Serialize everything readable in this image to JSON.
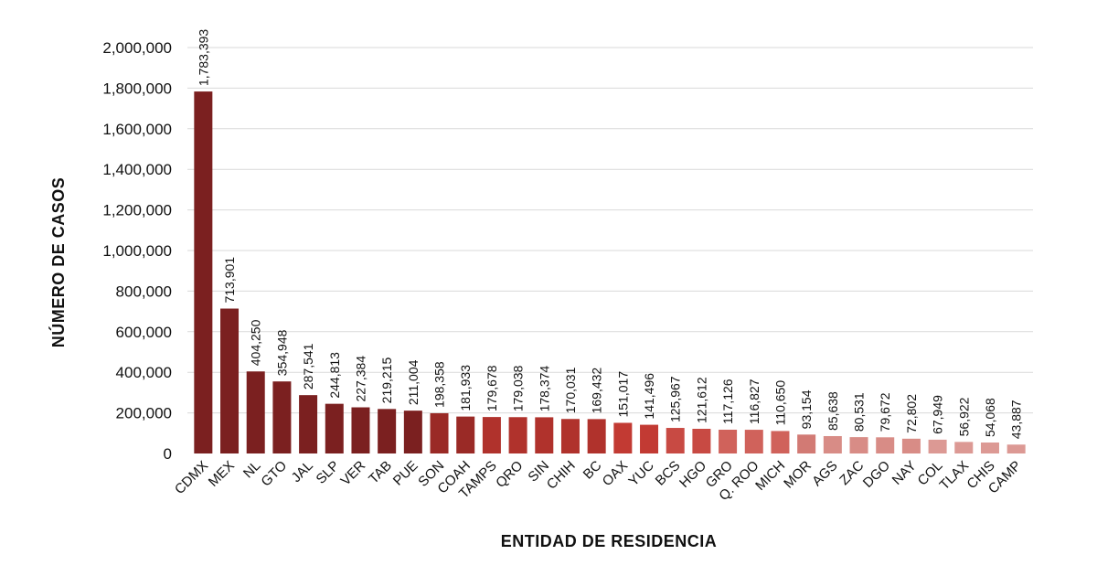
{
  "chart_data": {
    "type": "bar",
    "title": "",
    "xlabel": "ENTIDAD DE RESIDENCIA",
    "ylabel": "NÚMERO DE CASOS",
    "ylim": [
      0,
      2000000
    ],
    "yticks": [
      0,
      200000,
      400000,
      600000,
      800000,
      1000000,
      1200000,
      1400000,
      1600000,
      1800000,
      2000000
    ],
    "ytick_labels": [
      "0",
      "200,000",
      "400,000",
      "600,000",
      "800,000",
      "1,000,000",
      "1,200,000",
      "1,400,000",
      "1,600,000",
      "1,800,000",
      "2,000,000"
    ],
    "grid": true,
    "categories": [
      "CDMX",
      "MEX",
      "NL",
      "GTO",
      "JAL",
      "SLP",
      "VER",
      "TAB",
      "PUE",
      "SON",
      "COAH",
      "TAMPS",
      "QRO",
      "SIN",
      "CHIH",
      "BC",
      "OAX",
      "YUC",
      "BCS",
      "HGO",
      "GRO",
      "Q. ROO",
      "MICH",
      "MOR",
      "AGS",
      "ZAC",
      "DGO",
      "NAY",
      "COL",
      "TLAX",
      "CHIS",
      "CAMP"
    ],
    "values": [
      1783393,
      713901,
      404250,
      354948,
      287541,
      244813,
      227384,
      219215,
      211004,
      198358,
      181933,
      179678,
      179038,
      178374,
      170031,
      169432,
      151017,
      141496,
      125967,
      121612,
      117126,
      116827,
      110650,
      93154,
      85638,
      80531,
      79672,
      72802,
      67949,
      56922,
      54068,
      43887
    ],
    "value_labels": [
      "1,783,393",
      "713,901",
      "404,250",
      "354,948",
      "287,541",
      "244,813",
      "227,384",
      "219,215",
      "211,004",
      "198,358",
      "181,933",
      "179,678",
      "179,038",
      "178,374",
      "170,031",
      "169,432",
      "151,017",
      "141,496",
      "125,967",
      "121,612",
      "117,126",
      "116,827",
      "110,650",
      "93,154",
      "85,638",
      "80,531",
      "79,672",
      "72,802",
      "67,949",
      "56,922",
      "54,068",
      "43,887"
    ],
    "colors": [
      "#7b2020",
      "#7b2020",
      "#7b2020",
      "#7b2020",
      "#7b2020",
      "#7b2020",
      "#7b2020",
      "#7b2020",
      "#7b2020",
      "#9a2a26",
      "#9a2a26",
      "#b0322c",
      "#b0322c",
      "#b0322c",
      "#b0322c",
      "#b0322c",
      "#c23a33",
      "#c23a33",
      "#c84a43",
      "#c84a43",
      "#d0625b",
      "#d0625b",
      "#d0625b",
      "#d27a74",
      "#d88c86",
      "#d88c86",
      "#d88c86",
      "#d88c86",
      "#dc9994",
      "#dc9994",
      "#dc9994",
      "#dc9994"
    ]
  }
}
